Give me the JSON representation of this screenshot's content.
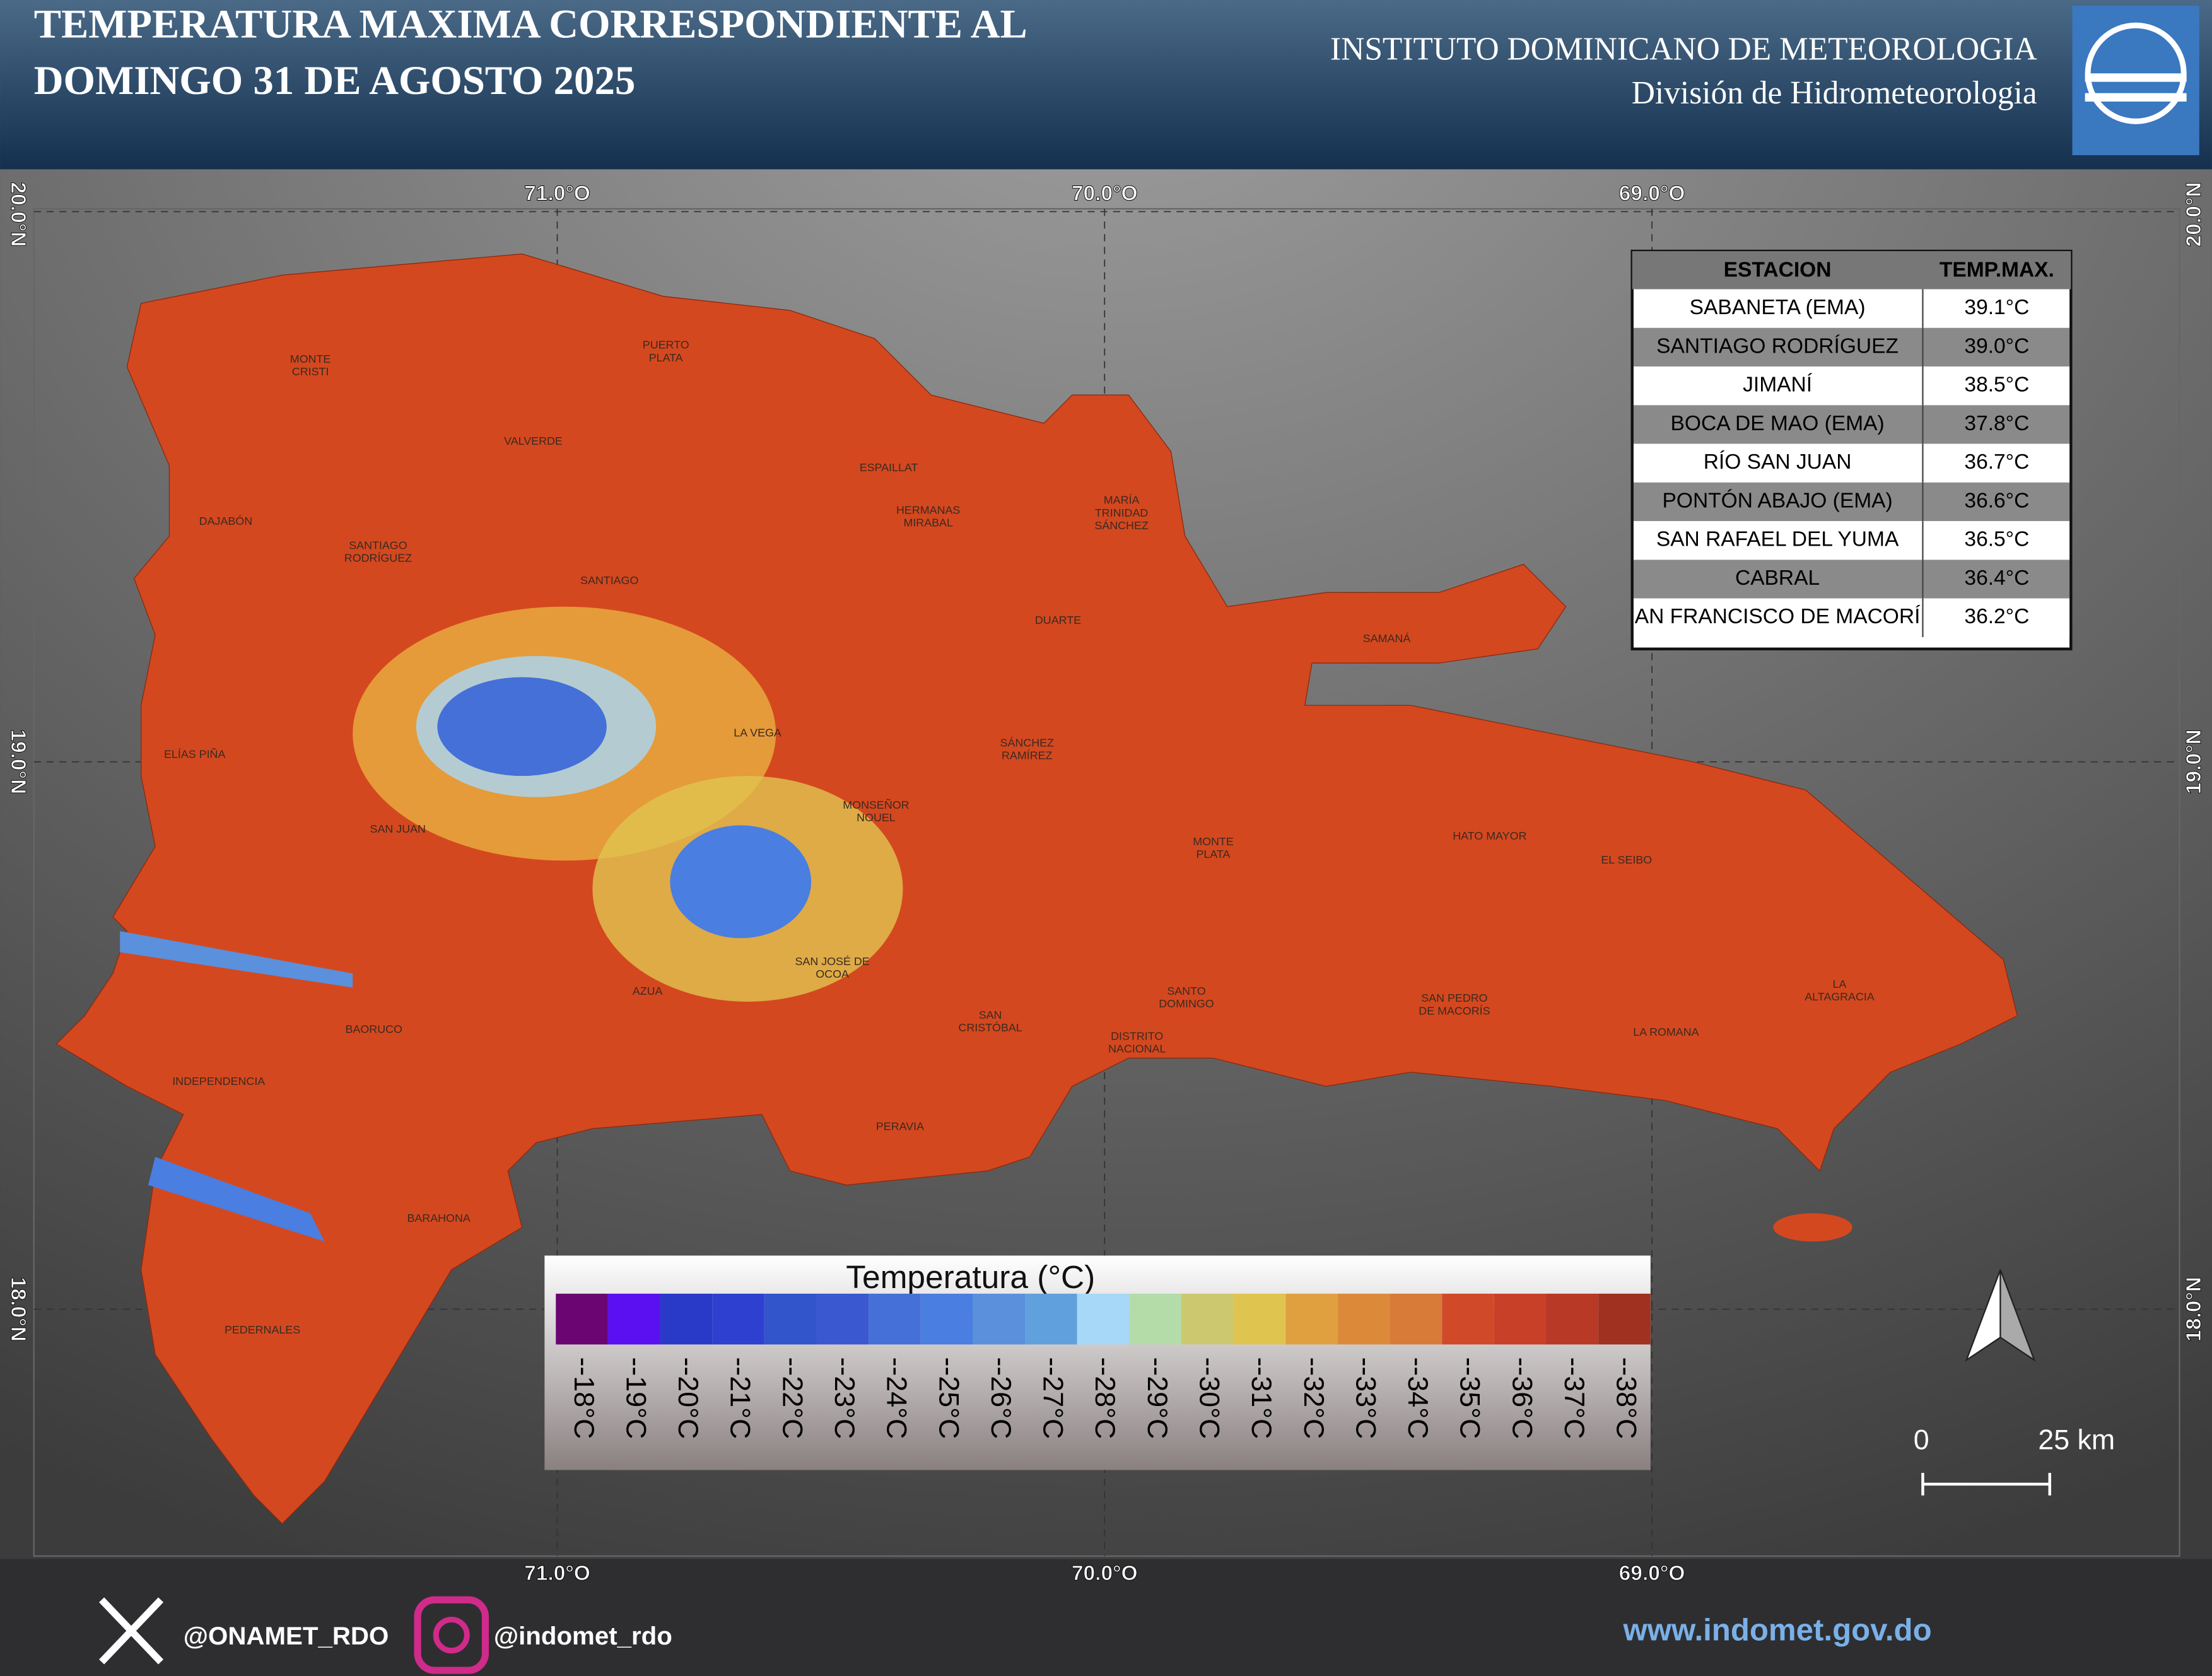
{
  "header": {
    "title_line1": "TEMPERATURA MAXIMA CORRESPONDIENTE AL",
    "title_line2": "DOMINGO 31 DE AGOSTO 2025",
    "institute": "INSTITUTO DOMINICANO DE METEOROLOGIA",
    "division": "División de Hidrometeorologia"
  },
  "grid_labels": {
    "longitudes": [
      "71.0°O",
      "70.0°O",
      "69.0°O"
    ],
    "latitudes": [
      "20.0°N",
      "19.0°N",
      "18.0°N"
    ]
  },
  "provinces": [
    [
      "MONTE",
      "CRISTI"
    ],
    [
      "PUERTO",
      "PLATA"
    ],
    [
      "VALVERDE"
    ],
    [
      "ESPAILLAT"
    ],
    [
      "HERMANAS",
      "MIRABAL"
    ],
    [
      "MARÍA",
      "TRINIDAD",
      "SÁNCHEZ"
    ],
    [
      "DAJABÓN"
    ],
    [
      "SANTIAGO",
      "RODRÍGUEZ"
    ],
    [
      "SANTIAGO"
    ],
    [
      "DUARTE"
    ],
    [
      "SAMANÁ"
    ],
    [
      "LA VEGA"
    ],
    [
      "SÁNCHEZ",
      "RAMÍREZ"
    ],
    [
      "ELÍAS PIÑA"
    ],
    [
      "MONSEÑOR",
      "NOUEL"
    ],
    [
      "SAN JUAN"
    ],
    [
      "HATO MAYOR"
    ],
    [
      "MONTE",
      "PLATA"
    ],
    [
      "EL SEIBO"
    ],
    [
      "SAN JOSÉ DE",
      "OCOA"
    ],
    [
      "AZUA"
    ],
    [
      "SANTO",
      "DOMINGO"
    ],
    [
      "LA",
      "ALTAGRACIA"
    ],
    [
      "SAN PEDRO",
      "DE MACORÍS"
    ],
    [
      "SAN",
      "CRISTÓBAL"
    ],
    [
      "BAORUCO"
    ],
    [
      "LA ROMANA"
    ],
    [
      "DISTRITO",
      "NACIONAL"
    ],
    [
      "INDEPENDENCIA"
    ],
    [
      "PERAVIA"
    ],
    [
      "BARAHONA"
    ],
    [
      "PEDERNALES"
    ]
  ],
  "table": {
    "headers": [
      "ESTACION",
      "TEMP.MAX."
    ],
    "rows": [
      [
        "SABANETA (EMA)",
        "39.1°C"
      ],
      [
        "SANTIAGO RODRÍGUEZ",
        "39.0°C"
      ],
      [
        "JIMANÍ",
        "38.5°C"
      ],
      [
        "BOCA DE MAO (EMA)",
        "37.8°C"
      ],
      [
        "RÍO SAN JUAN",
        "36.7°C"
      ],
      [
        "PONTÓN ABAJO (EMA)",
        "36.6°C"
      ],
      [
        "SAN RAFAEL DEL YUMA",
        "36.5°C"
      ],
      [
        "CABRAL",
        "36.4°C"
      ],
      [
        "AN FRANCISCO DE MACORÍ",
        "36.2°C"
      ]
    ]
  },
  "legend": {
    "title": "Temperatura (°C)",
    "items": [
      {
        "label": "--18°C",
        "color": "#6b0572"
      },
      {
        "label": "--19°C",
        "color": "#5a10f0"
      },
      {
        "label": "--20°C",
        "color": "#2a3ac8"
      },
      {
        "label": "--21°C",
        "color": "#2e40d0"
      },
      {
        "label": "--22°C",
        "color": "#3355cc"
      },
      {
        "label": "--23°C",
        "color": "#3a58cf"
      },
      {
        "label": "--24°C",
        "color": "#4470d8"
      },
      {
        "label": "--25°C",
        "color": "#4a7ee0"
      },
      {
        "label": "--26°C",
        "color": "#5a90dc"
      },
      {
        "label": "--27°C",
        "color": "#60a0dc"
      },
      {
        "label": "--28°C",
        "color": "#a8d8f8"
      },
      {
        "label": "--29°C",
        "color": "#b4dca8"
      },
      {
        "label": "--30°C",
        "color": "#ccc870"
      },
      {
        "label": "--31°C",
        "color": "#e0c450"
      },
      {
        "label": "--32°C",
        "color": "#e0a040"
      },
      {
        "label": "--33°C",
        "color": "#dc8a3a"
      },
      {
        "label": "--34°C",
        "color": "#d87a38"
      },
      {
        "label": "--35°C",
        "color": "#d04a2a"
      },
      {
        "label": "--36°C",
        "color": "#c84028"
      },
      {
        "label": "--37°C",
        "color": "#b83a26"
      },
      {
        "label": "--38°C",
        "color": "#a03020"
      }
    ]
  },
  "scale_bar": {
    "labels": [
      "0",
      "25 km"
    ]
  },
  "footer": {
    "twitter": "@ONAMET_RDO",
    "instagram": "@indomet_rdo",
    "website": "www.indomet.gov.do"
  }
}
